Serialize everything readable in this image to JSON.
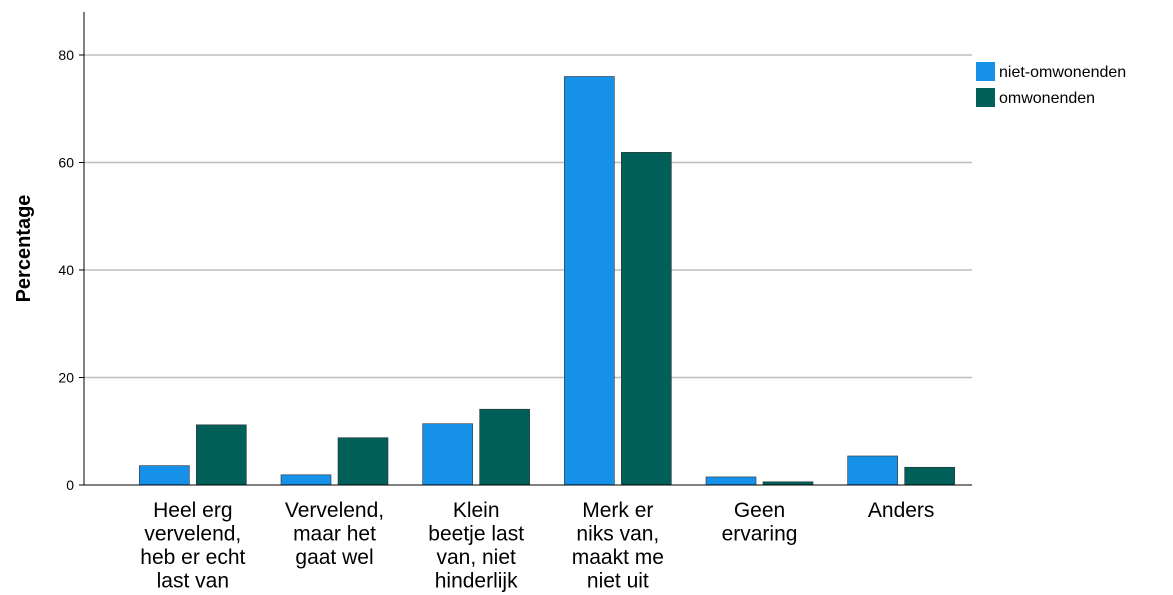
{
  "chart_data": {
    "type": "bar",
    "title": "",
    "xlabel": "",
    "ylabel": "Percentage",
    "ylim": [
      0,
      88
    ],
    "yticks": [
      0,
      20,
      40,
      60,
      80
    ],
    "grid": true,
    "legend_position": "top-right",
    "categories": [
      [
        "Heel erg",
        "vervelend,",
        "heb er echt",
        "last van"
      ],
      [
        "Vervelend,",
        "maar het",
        "gaat wel"
      ],
      [
        "Klein",
        "beetje last",
        "van, niet",
        "hinderlijk"
      ],
      [
        "Merk er",
        "niks van,",
        "maakt me",
        "niet uit"
      ],
      [
        "Geen",
        "ervaring"
      ],
      [
        "Anders"
      ]
    ],
    "series": [
      {
        "name": "niet-omwonenden",
        "color": "#1591e8",
        "values": [
          3.6,
          1.9,
          11.4,
          76.0,
          1.5,
          5.4
        ]
      },
      {
        "name": "omwonenden",
        "color": "#015f5a",
        "values": [
          11.2,
          8.8,
          14.1,
          61.9,
          0.6,
          3.3
        ]
      }
    ]
  }
}
